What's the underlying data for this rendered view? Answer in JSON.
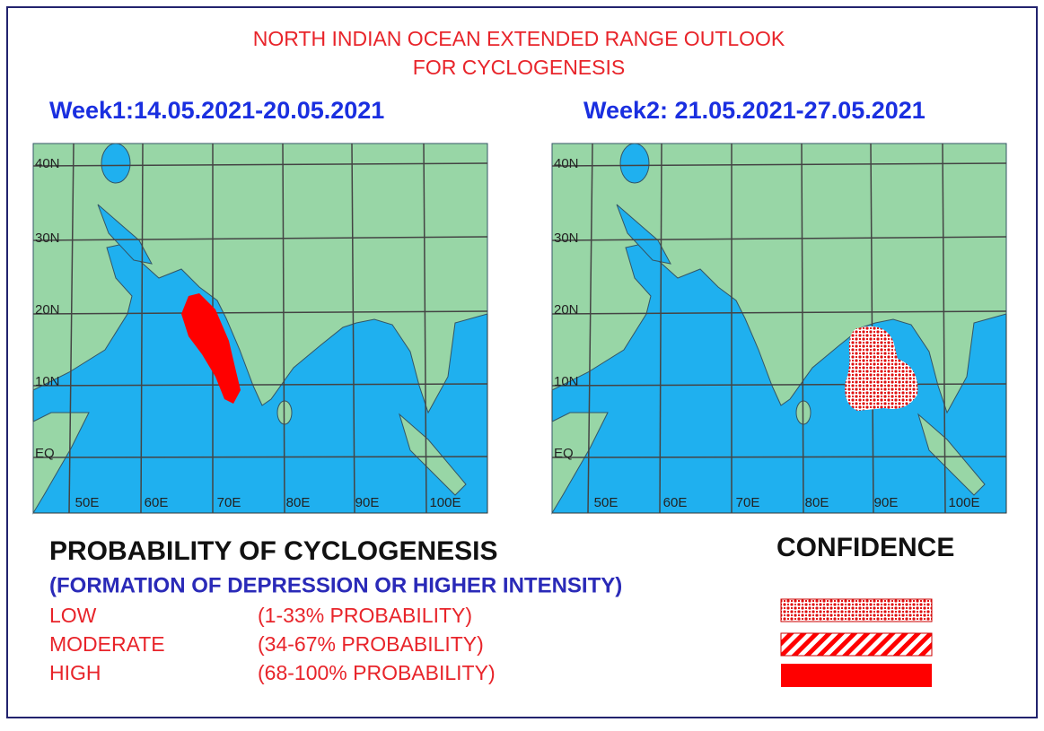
{
  "header": {
    "title_line1": "NORTH INDIAN OCEAN EXTENDED RANGE OUTLOOK",
    "title_line2": "FOR CYCLOGENESIS"
  },
  "maps": [
    {
      "week": "Week1:14.05.2021-20.05.2021"
    },
    {
      "week": "Week2: 21.05.2021-27.05.2021"
    }
  ],
  "lat_labels": [
    "40N",
    "30N",
    "20N",
    "10N",
    "EQ"
  ],
  "lon_labels": [
    "50E",
    "60E",
    "70E",
    "80E",
    "90E",
    "100E"
  ],
  "legend": {
    "title": "PROBABILITY OF CYCLOGENESIS",
    "subtitle": "(FORMATION OF DEPRESSION OR HIGHER INTENSITY)",
    "items": [
      {
        "level": "LOW",
        "range": "(1-33% PROBABILITY)"
      },
      {
        "level": "MODERATE",
        "range": "(34-67% PROBABILITY)"
      },
      {
        "level": "HIGH",
        "range": "(68-100% PROBABILITY)"
      }
    ],
    "confidence": "CONFIDENCE"
  }
}
